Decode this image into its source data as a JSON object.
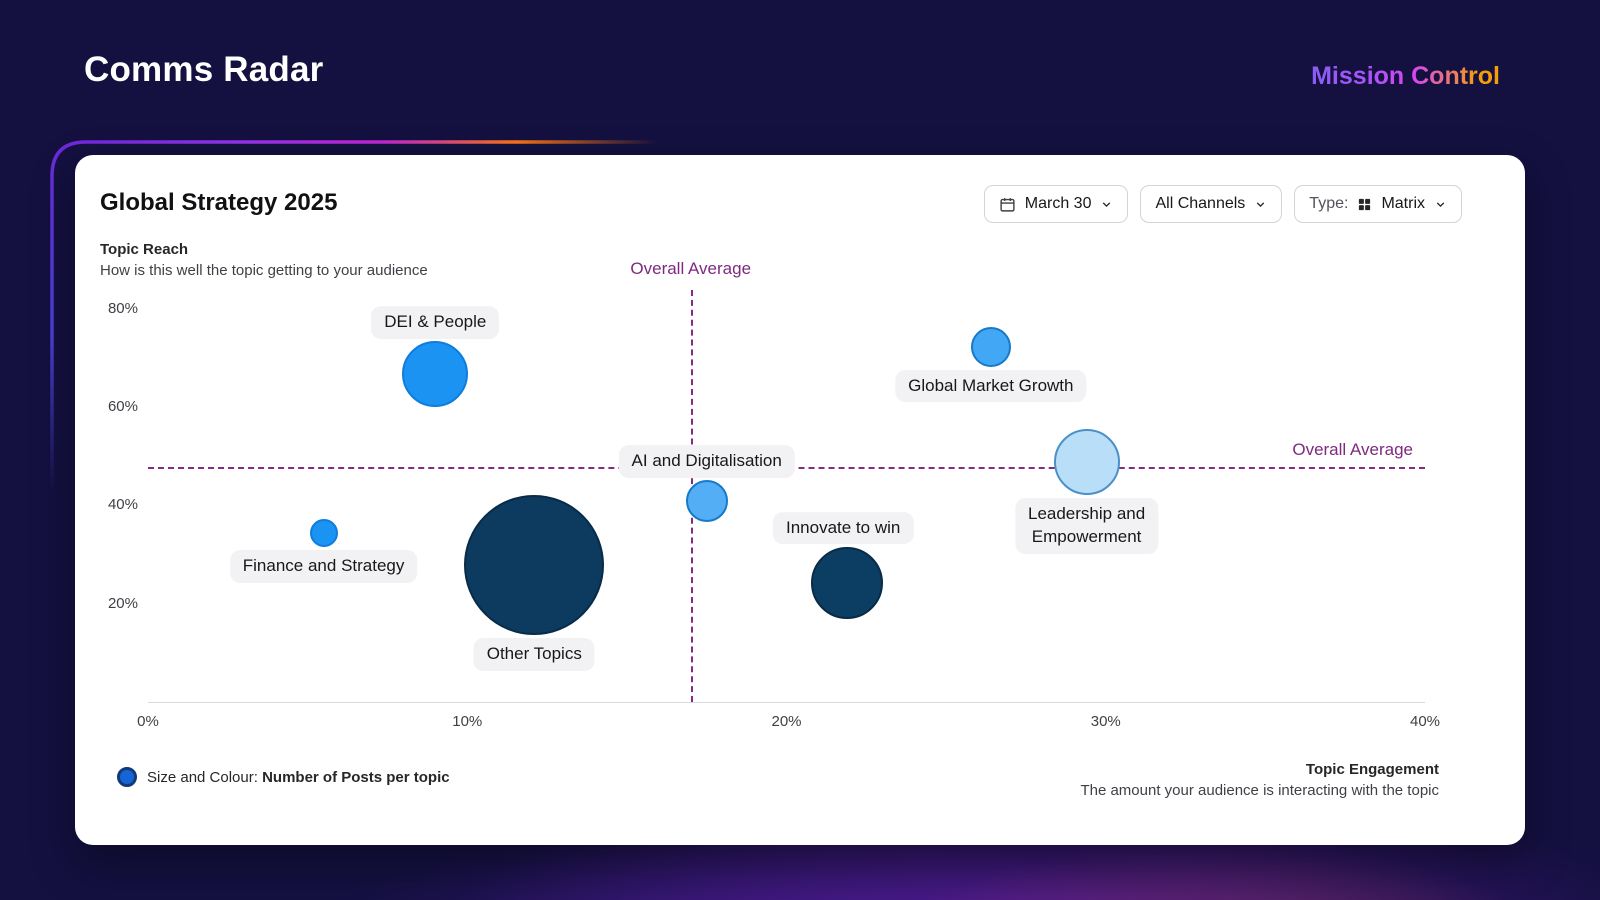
{
  "app": {
    "title": "Comms Radar",
    "brand": "Mission Control"
  },
  "panel": {
    "title": "Global Strategy 2025",
    "filters": {
      "date_label": "March 30",
      "channels_label": "All Channels",
      "type_prefix": "Type:",
      "type_value": "Matrix"
    },
    "y_axis_title": "Topic Reach",
    "y_axis_subtitle": "How is this well the topic getting to your audience",
    "x_axis_title": "Topic Engagement",
    "x_axis_subtitle": "The amount your audience is interacting with the topic",
    "legend_prefix": "Size and Colour:",
    "legend_bold": "Number of Posts per topic",
    "overall_average_label": "Overall Average"
  },
  "chart_data": {
    "type": "scatter",
    "subtype": "bubble",
    "title": "Global Strategy 2025",
    "xlabel": "Topic Engagement",
    "ylabel": "Topic Reach",
    "xlim": [
      0,
      40
    ],
    "ylim": [
      0,
      84
    ],
    "x_ticks": [
      0,
      10,
      20,
      30,
      40
    ],
    "y_ticks": [
      20,
      40,
      60,
      80
    ],
    "tick_suffix": "%",
    "grid": false,
    "overall_average_x": 17,
    "overall_average_y": 48,
    "size_meaning": "Number of Posts per topic",
    "points": [
      {
        "label": "DEI & People",
        "x": 9,
        "y": 67,
        "r": 33,
        "fill": "#1b93f2",
        "stroke": "#0e7ddd",
        "label_pos": "above"
      },
      {
        "label": "Global Market Growth",
        "x": 26.4,
        "y": 72.5,
        "r": 20,
        "fill": "#42a7f5",
        "stroke": "#1779c9",
        "label_pos": "below"
      },
      {
        "label": "AI and Digitalisation",
        "x": 17.5,
        "y": 41,
        "r": 21,
        "fill": "#54aef5",
        "stroke": "#1779c9",
        "label_pos": "above"
      },
      {
        "label": "Leadership and Empowerment",
        "label_lines": [
          "Leadership and",
          "Empowerment"
        ],
        "x": 29.4,
        "y": 49,
        "r": 33,
        "fill": "#b9def8",
        "stroke": "#4a90c9",
        "label_pos": "below"
      },
      {
        "label": "Finance and Strategy",
        "x": 5.5,
        "y": 34.5,
        "r": 14,
        "fill": "#1b93f2",
        "stroke": "#0e7ddd",
        "label_pos": "below"
      },
      {
        "label": "Other Topics",
        "x": 12.1,
        "y": 28,
        "r": 70,
        "fill": "#0d3a5f",
        "stroke": "#082b47",
        "label_pos": "below"
      },
      {
        "label": "Innovate to win",
        "x": 21.9,
        "y": 24.5,
        "r": 36,
        "fill": "#0c3e63",
        "stroke": "#082b47",
        "label_pos": "above",
        "label_dx": -4
      }
    ]
  }
}
